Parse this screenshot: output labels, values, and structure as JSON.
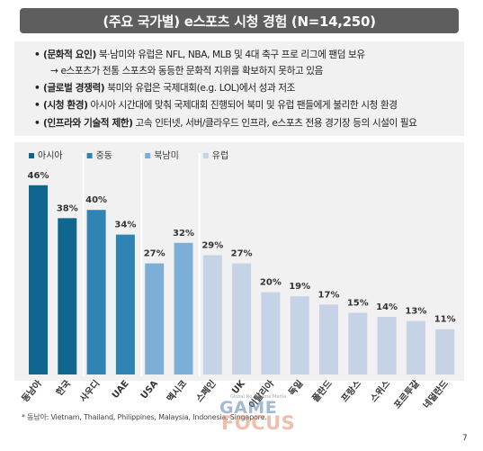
{
  "header": {
    "title": "(주요 국가별) e스포츠 시청 경험 (N=14,250)"
  },
  "bullets": [
    {
      "key": "(문화적 요인)",
      "text": " 북·남미와 유럽은 NFL, NBA, MLB 및 4대 축구 프로 리그에 팬덤 보유"
    },
    {
      "key": "",
      "text": "→ e스포츠가 전통 스포츠와 동등한 문화적 지위를 확보하지 못하고 있음"
    },
    {
      "key": "(글로벌 경쟁력)",
      "text": " 북미와 유럽은 국제대회(e.g. LOL)에서 성과 저조"
    },
    {
      "key": "(시청 환경)",
      "text": " 아시아 시간대에 맞춰 국제대회 진행되어 북미 및 유럽 팬들에게 불리한 시청 환경"
    },
    {
      "key": "(인프라와 기술적 제한)",
      "text": " 고속 인터넷, 서버/클라우드 인프라, e스포츠 전용 경기장 등의 시설이 필요"
    }
  ],
  "colors": {
    "asia": "#0f6790",
    "middle_east": "#2f84b3",
    "north_america": "#7dafd6",
    "europe": "#c6d3e6",
    "background": "#f1f1f1"
  },
  "chart_data": {
    "type": "bar",
    "categories": [
      "동남아",
      "한국",
      "사우디",
      "UAE",
      "USA",
      "멕시코",
      "스페인",
      "UK",
      "이탈리아",
      "독일",
      "폴란드",
      "프랑스",
      "스위스",
      "포르투갈",
      "네덜란드"
    ],
    "values": [
      46,
      38,
      40,
      34,
      27,
      32,
      29,
      27,
      20,
      19,
      17,
      15,
      14,
      13,
      11
    ],
    "value_labels": [
      "46%",
      "38%",
      "40%",
      "34%",
      "27%",
      "32%",
      "29%",
      "27%",
      "20%",
      "19%",
      "17%",
      "15%",
      "14%",
      "13%",
      "11%"
    ],
    "groups": [
      "asia",
      "asia",
      "middle_east",
      "middle_east",
      "north_america",
      "north_america",
      "europe",
      "europe",
      "europe",
      "europe",
      "europe",
      "europe",
      "europe",
      "europe",
      "europe"
    ],
    "legend": [
      {
        "key": "asia",
        "label": "아시아"
      },
      {
        "key": "middle_east",
        "label": "중동"
      },
      {
        "key": "north_america",
        "label": "북남미"
      },
      {
        "key": "europe",
        "label": "유럽"
      }
    ],
    "ylim": [
      0,
      50
    ],
    "grid": false,
    "title": "",
    "xlabel": "",
    "ylabel": ""
  },
  "footnote": "* 동남아: Vietnam, Thailand, Philippines, Malaysia, Indonesia, Singapore.",
  "page_number": "7",
  "watermark": {
    "small": "Global No.1 Game Media",
    "line1": "GAME",
    "line2": "FOCUS"
  }
}
